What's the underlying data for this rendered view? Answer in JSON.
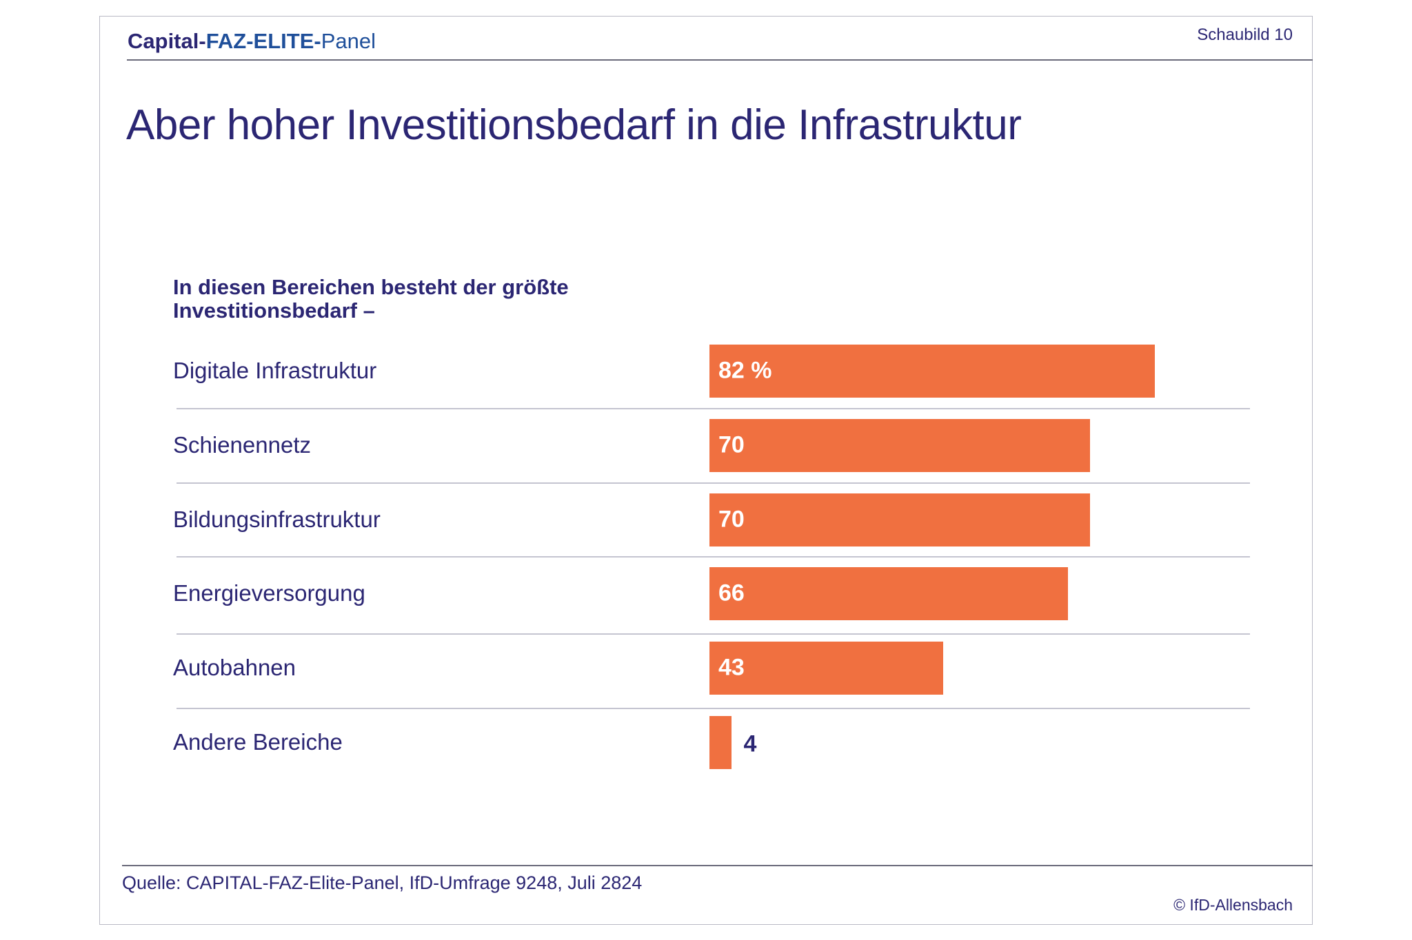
{
  "header": {
    "brand": {
      "capital": "Capital-",
      "faz": "FAZ-ELITE-",
      "panel": "Panel"
    },
    "figure_label": "Schaubild 10"
  },
  "title": "Aber hoher Investitionsbedarf in die Infrastruktur",
  "chart_data": {
    "type": "bar",
    "orientation": "horizontal",
    "title": "In diesen Bereichen besteht der größte Investitionsbedarf –",
    "categories": [
      "Digitale Infrastruktur",
      "Schienennetz",
      "Bildungsinfrastruktur",
      "Energieversorgung",
      "Autobahnen",
      "Andere Bereiche"
    ],
    "values": [
      82,
      70,
      70,
      66,
      43,
      4
    ],
    "value_labels": [
      "82  %",
      "70",
      "70",
      "66",
      "43",
      "4"
    ],
    "unit": "%",
    "bar_color": "#f07040",
    "grid": false,
    "legend": "none"
  },
  "footer": {
    "source": "Quelle: CAPITAL-FAZ-Elite-Panel, IfD-Umfrage 9248, Juli 2824",
    "copyright": "© IfD-Allensbach"
  }
}
